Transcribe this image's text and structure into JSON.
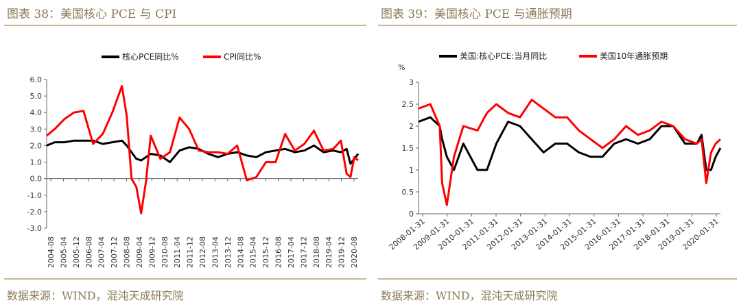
{
  "left": {
    "title": "图表 38：美国核心 PCE 与 CPI",
    "source": "数据来源：WIND，混沌天成研究院",
    "chart_data": {
      "type": "line",
      "legend_position": "top",
      "grid": false,
      "ylim": [
        -3.0,
        6.0
      ],
      "yticks": [
        "6.0",
        "5.0",
        "4.0",
        "3.0",
        "2.0",
        "1.0",
        "0.0",
        "-1.0",
        "-2.0",
        "-3.0"
      ],
      "xticks": [
        "2004-08",
        "2005-04",
        "2005-12",
        "2006-08",
        "2007-04",
        "2007-12",
        "2008-08",
        "2009-04",
        "2009-12",
        "2010-08",
        "2011-04",
        "2011-12",
        "2012-08",
        "2013-04",
        "2013-12",
        "2014-08",
        "2015-04",
        "2015-12",
        "2016-08",
        "2017-04",
        "2017-12",
        "2018-08",
        "2019-04",
        "2019-12",
        "2020-08"
      ],
      "x": [
        2004.58,
        2005.0,
        2005.5,
        2006.0,
        2006.5,
        2007.0,
        2007.5,
        2008.0,
        2008.5,
        2008.75,
        2009.0,
        2009.25,
        2009.5,
        2009.75,
        2010.0,
        2010.5,
        2011.0,
        2011.5,
        2012.0,
        2012.5,
        2013.0,
        2013.5,
        2014.0,
        2014.5,
        2015.0,
        2015.5,
        2016.0,
        2016.5,
        2017.0,
        2017.5,
        2018.0,
        2018.5,
        2019.0,
        2019.5,
        2019.9,
        2020.2,
        2020.4,
        2020.6,
        2020.8
      ],
      "series": [
        {
          "name": "核心PCE同比%",
          "color": "#000000",
          "values": [
            2.0,
            2.2,
            2.2,
            2.3,
            2.3,
            2.3,
            2.1,
            2.2,
            2.3,
            2.0,
            1.6,
            1.2,
            1.1,
            1.3,
            1.5,
            1.4,
            1.0,
            1.7,
            1.9,
            1.8,
            1.5,
            1.3,
            1.5,
            1.6,
            1.4,
            1.3,
            1.6,
            1.7,
            1.8,
            1.6,
            1.7,
            2.0,
            1.6,
            1.7,
            1.6,
            1.8,
            0.9,
            1.2,
            1.5
          ]
        },
        {
          "name": "CPI同比%",
          "color": "#ff0000",
          "values": [
            2.6,
            3.0,
            3.6,
            4.0,
            4.1,
            2.1,
            2.7,
            4.0,
            5.6,
            3.8,
            0.0,
            -0.5,
            -2.1,
            -0.2,
            2.6,
            1.2,
            1.6,
            3.7,
            3.0,
            1.7,
            1.6,
            1.6,
            1.5,
            2.0,
            -0.1,
            0.1,
            1.0,
            1.0,
            2.7,
            1.7,
            2.1,
            2.9,
            1.7,
            1.8,
            2.3,
            0.3,
            0.1,
            1.3,
            1.1
          ]
        }
      ]
    }
  },
  "right": {
    "title": "图表 39：美国核心 PCE 与通胀预期",
    "source": "数据来源：WIND，混沌天成研究院",
    "chart_data": {
      "type": "line",
      "legend_position": "top",
      "grid": false,
      "ylabel": "%",
      "ylim": [
        0,
        3
      ],
      "yticks": [
        "3",
        "2.5",
        "2",
        "1.5",
        "1",
        "0.5",
        "0"
      ],
      "xticks": [
        "2008-01-31",
        "2009-01-31",
        "2010-01-31",
        "2011-01-31",
        "2012-01-31",
        "2013-01-31",
        "2014-01-31",
        "2015-01-31",
        "2016-01-31",
        "2017-01-31",
        "2018-01-31",
        "2019-01-31",
        "2020-01-31"
      ],
      "x": [
        2008.0,
        2008.5,
        2008.9,
        2009.0,
        2009.2,
        2009.5,
        2009.9,
        2010.5,
        2010.9,
        2011.3,
        2011.8,
        2012.3,
        2012.8,
        2013.3,
        2013.8,
        2014.3,
        2014.8,
        2015.3,
        2015.8,
        2016.3,
        2016.8,
        2017.3,
        2017.8,
        2018.3,
        2018.8,
        2019.3,
        2019.8,
        2020.0,
        2020.2,
        2020.4,
        2020.6,
        2020.8
      ],
      "series": [
        {
          "name": "美国:核心PCE:当月同比",
          "color": "#000000",
          "values": [
            2.1,
            2.2,
            2.0,
            1.7,
            1.3,
            1.0,
            1.6,
            1.0,
            1.0,
            1.6,
            2.1,
            2.0,
            1.7,
            1.4,
            1.6,
            1.6,
            1.4,
            1.3,
            1.3,
            1.6,
            1.7,
            1.6,
            1.7,
            2.0,
            2.0,
            1.6,
            1.6,
            1.8,
            1.0,
            1.0,
            1.3,
            1.5
          ]
        },
        {
          "name": "美国10年通胀预期",
          "color": "#ff0000",
          "values": [
            2.4,
            2.5,
            2.0,
            0.7,
            0.2,
            1.3,
            2.0,
            1.9,
            2.3,
            2.5,
            2.3,
            2.2,
            2.6,
            2.4,
            2.2,
            2.2,
            1.9,
            1.7,
            1.5,
            1.7,
            2.0,
            1.8,
            1.9,
            2.1,
            2.0,
            1.7,
            1.6,
            1.7,
            0.7,
            1.4,
            1.6,
            1.7
          ]
        }
      ]
    }
  }
}
